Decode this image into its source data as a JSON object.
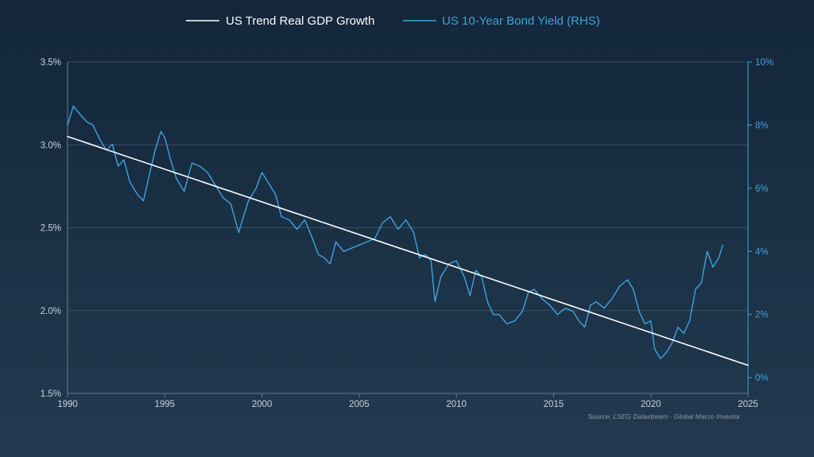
{
  "chart_data": {
    "type": "line",
    "legend": {
      "position": "top-center",
      "entries": [
        {
          "label": "US Trend Real GDP Growth",
          "color": "#ffffff"
        },
        {
          "label": "US 10-Year Bond Yield (RHS)",
          "color": "#3fa3dc"
        }
      ]
    },
    "x_axis": {
      "range": [
        1990,
        2025
      ],
      "ticks": [
        "1990",
        "1995",
        "2000",
        "2005",
        "2010",
        "2015",
        "2020",
        "2025"
      ]
    },
    "y_left": {
      "range": [
        1.5,
        3.5
      ],
      "ticks": [
        {
          "value": 1.5,
          "label": "1.5%"
        },
        {
          "value": 2.0,
          "label": "2.0%"
        },
        {
          "value": 2.5,
          "label": "2.5%"
        },
        {
          "value": 3.0,
          "label": "3.0%"
        },
        {
          "value": 3.5,
          "label": "3.5%"
        }
      ]
    },
    "y_right": {
      "range": [
        -0.5,
        10
      ],
      "ticks": [
        {
          "value": 0,
          "label": "0%"
        },
        {
          "value": 2,
          "label": "2%"
        },
        {
          "value": 4,
          "label": "4%"
        },
        {
          "value": 6,
          "label": "6%"
        },
        {
          "value": 8,
          "label": "8%"
        },
        {
          "value": 10,
          "label": "10%"
        }
      ]
    },
    "grid": "horizontal",
    "series": [
      {
        "name": "US Trend Real GDP Growth",
        "axis": "left",
        "color": "#ffffff",
        "x": [
          1990.0,
          2025.0
        ],
        "y": [
          3.05,
          1.67
        ]
      },
      {
        "name": "US 10-Year Bond Yield (RHS)",
        "axis": "right",
        "color": "#3fa3dc",
        "x": [
          1990.0,
          1990.3,
          1990.7,
          1991.0,
          1991.3,
          1991.7,
          1992.0,
          1992.3,
          1992.6,
          1992.9,
          1993.2,
          1993.6,
          1993.9,
          1994.2,
          1994.5,
          1994.8,
          1995.0,
          1995.3,
          1995.6,
          1996.0,
          1996.4,
          1996.8,
          1997.2,
          1997.6,
          1998.0,
          1998.4,
          1998.8,
          1999.0,
          1999.3,
          1999.7,
          2000.0,
          2000.3,
          2000.7,
          2001.0,
          2001.4,
          2001.8,
          2002.2,
          2002.6,
          2002.9,
          2003.2,
          2003.5,
          2003.8,
          2004.2,
          2004.6,
          2005.0,
          2005.4,
          2005.8,
          2006.2,
          2006.6,
          2007.0,
          2007.4,
          2007.8,
          2008.1,
          2008.4,
          2008.7,
          2008.9,
          2009.2,
          2009.6,
          2010.0,
          2010.4,
          2010.7,
          2011.0,
          2011.3,
          2011.6,
          2011.9,
          2012.2,
          2012.6,
          2013.0,
          2013.4,
          2013.7,
          2014.0,
          2014.4,
          2014.8,
          2015.2,
          2015.6,
          2016.0,
          2016.3,
          2016.6,
          2016.9,
          2017.2,
          2017.6,
          2018.0,
          2018.4,
          2018.8,
          2019.1,
          2019.4,
          2019.7,
          2020.0,
          2020.2,
          2020.5,
          2020.8,
          2021.1,
          2021.4,
          2021.7,
          2022.0,
          2022.3,
          2022.6,
          2022.9,
          2023.2,
          2023.5,
          2023.7
        ],
        "y": [
          8.0,
          8.6,
          8.3,
          8.1,
          8.0,
          7.5,
          7.2,
          7.4,
          6.7,
          6.9,
          6.2,
          5.8,
          5.6,
          6.4,
          7.2,
          7.8,
          7.6,
          6.9,
          6.3,
          5.9,
          6.8,
          6.7,
          6.5,
          6.1,
          5.7,
          5.5,
          4.6,
          5.0,
          5.6,
          6.0,
          6.5,
          6.2,
          5.8,
          5.1,
          5.0,
          4.7,
          5.0,
          4.4,
          3.9,
          3.8,
          3.6,
          4.3,
          4.0,
          4.1,
          4.2,
          4.3,
          4.4,
          4.9,
          5.1,
          4.7,
          5.0,
          4.6,
          3.8,
          3.9,
          3.7,
          2.4,
          3.2,
          3.6,
          3.7,
          3.2,
          2.6,
          3.4,
          3.2,
          2.4,
          2.0,
          2.0,
          1.7,
          1.8,
          2.1,
          2.7,
          2.8,
          2.5,
          2.3,
          2.0,
          2.2,
          2.1,
          1.8,
          1.6,
          2.3,
          2.4,
          2.2,
          2.5,
          2.9,
          3.1,
          2.8,
          2.1,
          1.7,
          1.8,
          0.9,
          0.6,
          0.8,
          1.1,
          1.6,
          1.4,
          1.8,
          2.8,
          3.0,
          4.0,
          3.5,
          3.8,
          4.2
        ]
      }
    ],
    "annotations": [
      "Source: LSEG Datastream - Global Macro Investor"
    ]
  }
}
